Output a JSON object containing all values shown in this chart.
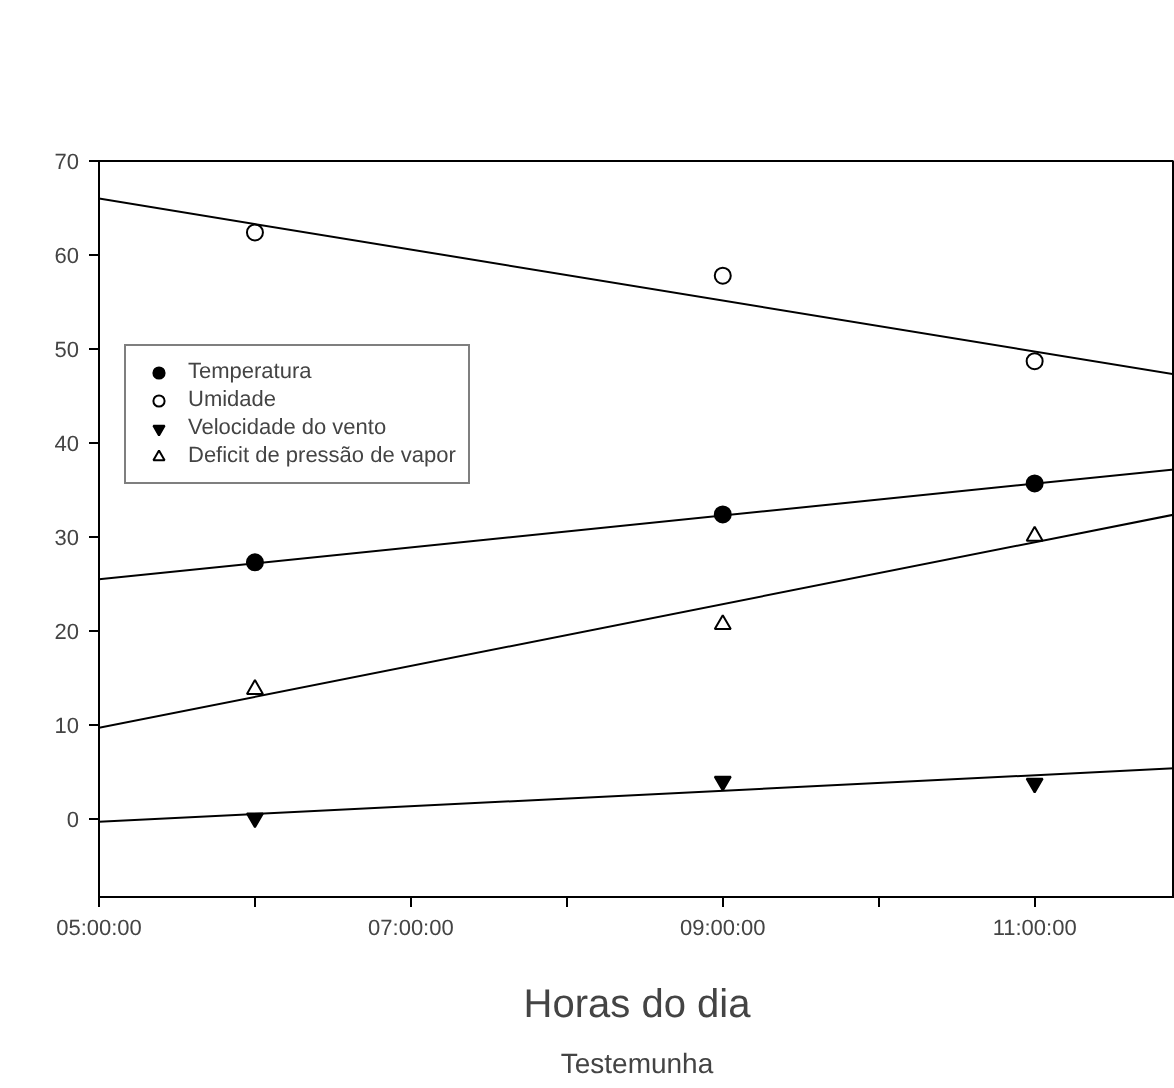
{
  "chart_data": {
    "type": "scatter",
    "xlabel": "Horas do dia",
    "annotations": [
      "Testemunha"
    ],
    "xlim": [
      5,
      11.9
    ],
    "ylim": [
      -8.3,
      70
    ],
    "xticks": [
      {
        "value": 5,
        "label": "05:00:00"
      },
      {
        "value": 6,
        "label": null
      },
      {
        "value": 7,
        "label": "07:00:00"
      },
      {
        "value": 8,
        "label": null
      },
      {
        "value": 9,
        "label": "09:00:00"
      },
      {
        "value": 10,
        "label": null
      },
      {
        "value": 11,
        "label": "11:00:00"
      }
    ],
    "yticks": [
      0,
      10,
      20,
      30,
      40,
      50,
      60,
      70
    ],
    "grid": false,
    "legend": "top left",
    "series": [
      {
        "name": "Temperatura",
        "marker": "circle",
        "color": "#000000",
        "x": [
          6,
          9,
          11
        ],
        "values": [
          27.3,
          32.4,
          35.7
        ]
      },
      {
        "name": "Umidade",
        "marker": "circle_open",
        "color": "#000000",
        "x": [
          6,
          9,
          11
        ],
        "values": [
          62.4,
          57.8,
          48.7
        ]
      },
      {
        "name": "Velocidade do vento",
        "marker": "triangle_down",
        "color": "#000000",
        "x": [
          6,
          9,
          11
        ],
        "values": [
          0.1,
          4.0,
          3.8
        ]
      },
      {
        "name": "Deficit de pressão de vapor",
        "marker": "triangle_open",
        "color": "#000000",
        "x": [
          6,
          9,
          11
        ],
        "values": [
          13.8,
          20.7,
          30.1
        ]
      },
      {
        "type": "line",
        "color": "#000000",
        "x": [
          5,
          11.9
        ],
        "values": [
          25.5,
          37.2
        ]
      },
      {
        "type": "line",
        "color": "#000000",
        "x": [
          5,
          11.9
        ],
        "values": [
          66.0,
          47.3
        ]
      },
      {
        "type": "line",
        "color": "#000000",
        "x": [
          5,
          11.9
        ],
        "values": [
          -0.3,
          5.4
        ]
      },
      {
        "type": "line",
        "color": "#000000",
        "x": [
          5,
          11.9
        ],
        "values": [
          9.7,
          32.4
        ]
      }
    ]
  }
}
